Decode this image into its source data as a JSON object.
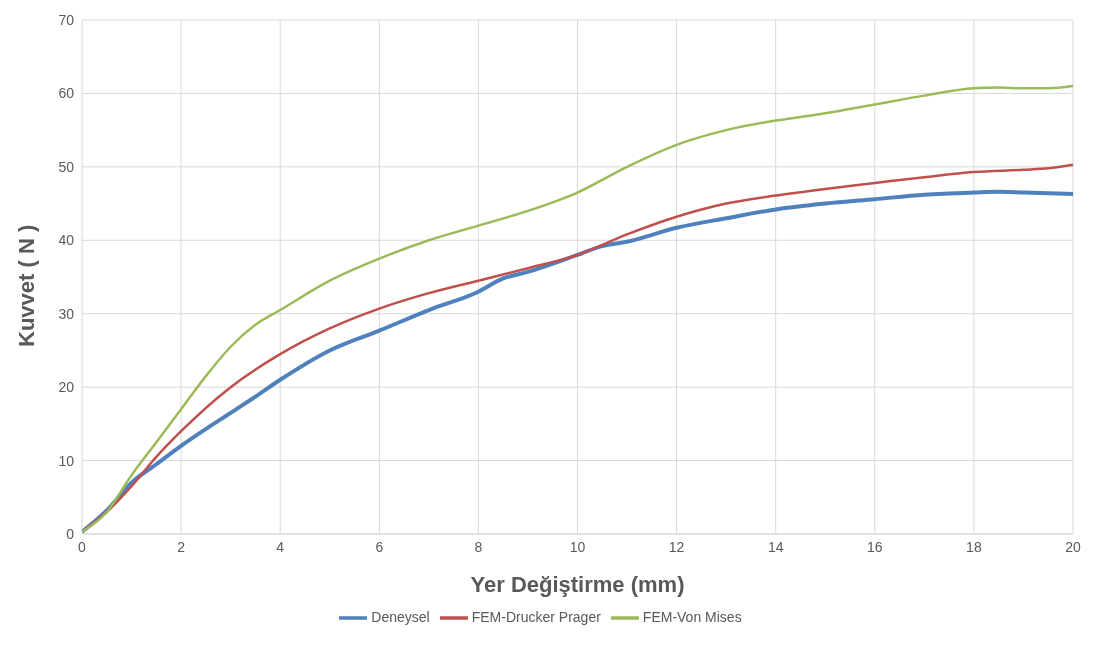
{
  "chart_data": {
    "type": "line",
    "xlabel": "Yer Değiştirme (mm)",
    "ylabel": "Kuvvet ( N )",
    "xlim": [
      0,
      20
    ],
    "xticks": [
      0,
      2,
      4,
      6,
      8,
      10,
      12,
      14,
      16,
      18,
      20
    ],
    "ylim": [
      0,
      70
    ],
    "yticks": [
      0,
      10,
      20,
      30,
      40,
      50,
      60,
      70
    ],
    "grid": true,
    "legend": "bottom",
    "series": [
      {
        "name": "Deneysel",
        "color": "#4f81bd",
        "x": [
          0,
          0.5,
          1,
          1.5,
          2,
          3,
          3.5,
          4,
          5,
          6,
          7,
          8,
          8.5,
          9,
          10,
          10.5,
          11,
          12,
          13,
          14,
          15,
          16,
          17,
          18,
          18.5,
          19,
          20
        ],
        "values": [
          0.3,
          3.2,
          7,
          9.5,
          12,
          16.5,
          18.7,
          21,
          25,
          27.7,
          30.5,
          33,
          34.8,
          35.7,
          38,
          39.2,
          39.8,
          41.7,
          43,
          44.2,
          45,
          45.6,
          46.2,
          46.5,
          46.6,
          46.5,
          46.3
        ]
      },
      {
        "name": "FEM-Drucker Prager",
        "color": "#c0504d",
        "x": [
          0,
          0.5,
          1,
          1.5,
          2,
          3,
          4,
          5,
          6,
          7,
          8,
          9,
          10,
          11,
          12,
          13,
          14,
          15,
          16,
          17,
          18,
          19,
          19.5,
          20
        ],
        "values": [
          0.3,
          3,
          6.5,
          10.5,
          14,
          20,
          24.5,
          28,
          30.7,
          32.8,
          34.5,
          36.2,
          38,
          40.8,
          43.2,
          45,
          46.1,
          47,
          47.8,
          48.6,
          49.3,
          49.6,
          49.8,
          50.3
        ]
      },
      {
        "name": "FEM-Von Mises",
        "color": "#9bbb59",
        "x": [
          0,
          0.5,
          1,
          1.5,
          2,
          2.5,
          3,
          3.5,
          4,
          5,
          6,
          7,
          8,
          9,
          10,
          11,
          12,
          13,
          14,
          15,
          16,
          17,
          18,
          18.5,
          19,
          19.5,
          20
        ],
        "values": [
          0.3,
          3,
          8,
          12.5,
          17,
          21.5,
          25.5,
          28.5,
          30.5,
          34.5,
          37.5,
          40,
          42,
          44,
          46.5,
          50,
          53,
          55,
          56.3,
          57.3,
          58.5,
          59.7,
          60.7,
          60.8,
          60.7,
          60.7,
          61
        ]
      }
    ]
  }
}
